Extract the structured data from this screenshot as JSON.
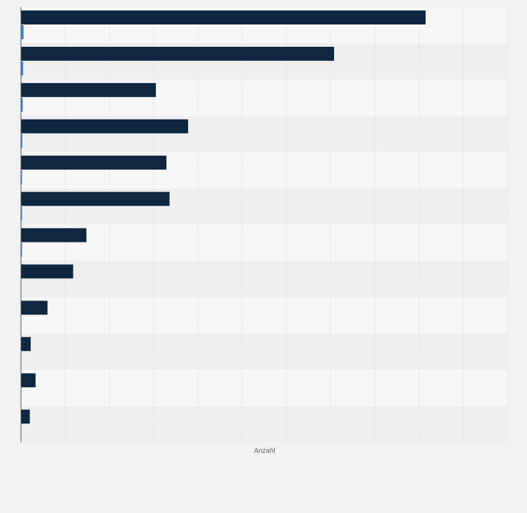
{
  "colors": {
    "page_bg": "#f2f2f2",
    "band_light": "#f7f7f7",
    "band_dark": "#efefef",
    "grid": "#dcdcdc",
    "axis": "#555555",
    "label": "#666666"
  },
  "chart_data": {
    "type": "bar",
    "orientation": "horizontal",
    "title": "",
    "xlabel": "Anzahl",
    "ylabel": "",
    "grid": true,
    "x_gridline_count": 11,
    "xlim": [
      0,
      1100
    ],
    "categories": [
      "",
      "",
      "",
      "",
      "",
      "",
      "",
      "",
      "",
      "",
      "",
      ""
    ],
    "series": [
      {
        "color": "#0f2741",
        "values": [
          915,
          708,
          305,
          378,
          329,
          336,
          148,
          118,
          60,
          22,
          33,
          20
        ]
      },
      {
        "color": "#3e83d8",
        "values": [
          6,
          5,
          4,
          3,
          2,
          2,
          2,
          0,
          0,
          0,
          0,
          0
        ]
      }
    ]
  }
}
